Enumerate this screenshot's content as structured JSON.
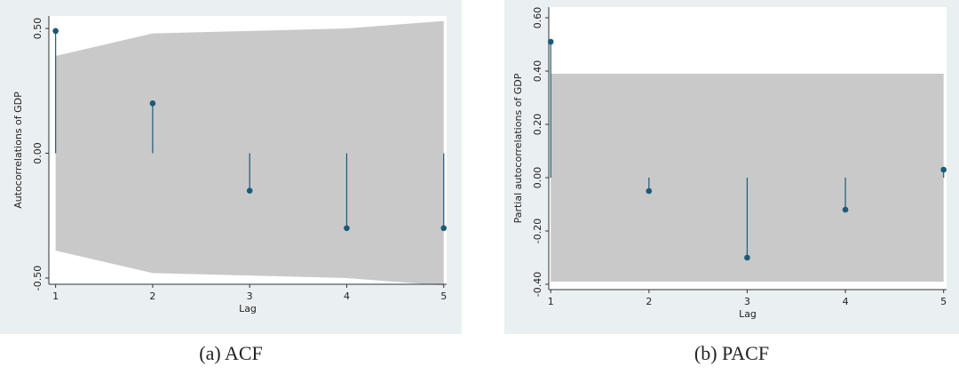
{
  "chart_data": [
    {
      "type": "stem",
      "caption": "(a) ACF",
      "x_label": "Lag",
      "y_label": "Autocorrelations of GDP",
      "x": [
        1,
        2,
        3,
        4,
        5
      ],
      "values": [
        0.49,
        0.2,
        -0.15,
        -0.3,
        -0.3
      ],
      "color": "#1b5a78",
      "ci_upper": [
        0.39,
        0.48,
        0.49,
        0.5,
        0.53
      ],
      "ci_lower": [
        -0.39,
        -0.48,
        -0.49,
        -0.5,
        -0.53
      ],
      "band_color": "#c9c9c9",
      "xlim": [
        0.93,
        5.03
      ],
      "xticks": [
        1,
        2,
        3,
        4,
        5
      ],
      "ylim": [
        -0.525,
        0.55
      ],
      "yticks": [
        {
          "value": -0.5,
          "label": "-0.50"
        },
        {
          "value": 0,
          "label": "0.00"
        },
        {
          "value": 0.5,
          "label": "0.50"
        }
      ]
    },
    {
      "type": "stem",
      "caption": "(b) PACF",
      "x_label": "Lag",
      "y_label": "Partial autocorrelations of GDP",
      "x": [
        1,
        2,
        3,
        4,
        5
      ],
      "values": [
        0.51,
        -0.05,
        -0.3,
        -0.12,
        0.03
      ],
      "color": "#1b5a78",
      "ci_upper": [
        0.39,
        0.39,
        0.39,
        0.39,
        0.39
      ],
      "ci_lower": [
        -0.39,
        -0.39,
        -0.39,
        -0.39,
        -0.39
      ],
      "band_color": "#c9c9c9",
      "xlim": [
        0.98,
        5.03
      ],
      "xticks": [
        1,
        2,
        3,
        4,
        5
      ],
      "ylim": [
        -0.42,
        0.64
      ],
      "yticks": [
        {
          "value": -0.4,
          "label": "-0.40"
        },
        {
          "value": -0.2,
          "label": "-0.20"
        },
        {
          "value": 0,
          "label": "0.00"
        },
        {
          "value": 0.2,
          "label": "0.20"
        },
        {
          "value": 0.4,
          "label": "0.40"
        },
        {
          "value": 0.6,
          "label": "0.60"
        }
      ]
    }
  ]
}
